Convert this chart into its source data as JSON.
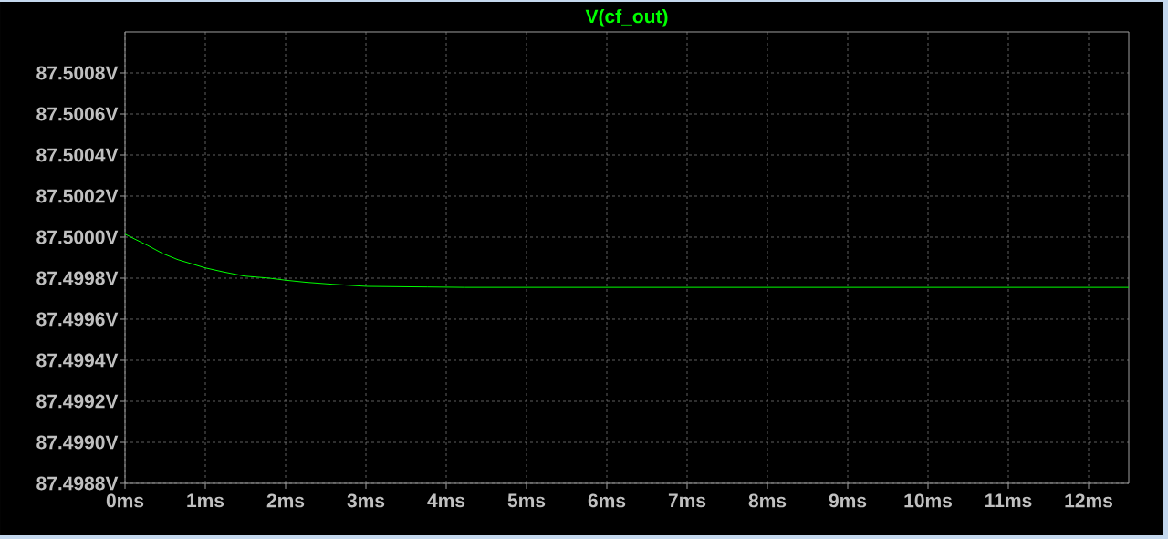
{
  "chart_data": {
    "type": "line",
    "title": "V(cf_out)",
    "x": [
      0,
      0.125,
      0.28,
      0.47,
      0.66,
      1.0,
      1.23,
      1.49,
      1.8,
      2.0,
      2.25,
      2.59,
      3.01,
      3.77,
      4.23,
      6.0,
      8.0,
      10.0,
      12.5
    ],
    "series": [
      {
        "color": "#00ff00",
        "values": [
          87.500015,
          87.49999,
          87.49996,
          87.49992,
          87.49989,
          87.49985,
          87.49983,
          87.49981,
          87.4998,
          87.49979,
          87.49978,
          87.49977,
          87.49976,
          87.499757,
          87.499755,
          87.499755,
          87.499755,
          87.499755,
          87.499755
        ]
      }
    ],
    "xlim": [
      0,
      12.5
    ],
    "ylim": [
      87.4988,
      87.501
    ],
    "xticks": [
      {
        "value": 0,
        "label": "0ms"
      },
      {
        "value": 1,
        "label": "1ms"
      },
      {
        "value": 2,
        "label": "2ms"
      },
      {
        "value": 3,
        "label": "3ms"
      },
      {
        "value": 4,
        "label": "4ms"
      },
      {
        "value": 5,
        "label": "5ms"
      },
      {
        "value": 6,
        "label": "6ms"
      },
      {
        "value": 7,
        "label": "7ms"
      },
      {
        "value": 8,
        "label": "8ms"
      },
      {
        "value": 9,
        "label": "9ms"
      },
      {
        "value": 10,
        "label": "10ms"
      },
      {
        "value": 11,
        "label": "11ms"
      },
      {
        "value": 12,
        "label": "12ms"
      }
    ],
    "yticks": [
      {
        "value": 87.4988,
        "label": "87.4988V"
      },
      {
        "value": 87.499,
        "label": "87.4990V"
      },
      {
        "value": 87.4992,
        "label": "87.4992V"
      },
      {
        "value": 87.4994,
        "label": "87.4994V"
      },
      {
        "value": 87.4996,
        "label": "87.4996V"
      },
      {
        "value": 87.4998,
        "label": "87.4998V"
      },
      {
        "value": 87.5,
        "label": "87.5000V"
      },
      {
        "value": 87.5002,
        "label": "87.5002V"
      },
      {
        "value": 87.5004,
        "label": "87.5004V"
      },
      {
        "value": 87.5006,
        "label": "87.5006V"
      },
      {
        "value": 87.5008,
        "label": "87.5008V"
      }
    ],
    "grid": true,
    "marker": "none",
    "line_style": "solid"
  }
}
